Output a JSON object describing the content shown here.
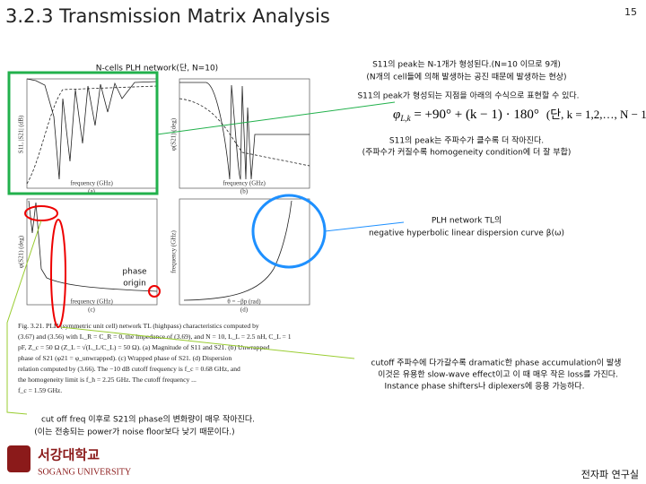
{
  "header": {
    "title": "3.2.3 Transmission Matrix Analysis",
    "page_number": "15"
  },
  "figure": {
    "panels": [
      {
        "tag": "(a)",
        "xlabel": "frequency (GHz)",
        "ylabel": "S11, |S21| (dB)"
      },
      {
        "tag": "(b)",
        "xlabel": "frequency (GHz)",
        "ylabel": "φ(S21) (deg)"
      },
      {
        "tag": "(c)",
        "xlabel": "frequency (GHz)",
        "ylabel": "φ(S21) (deg)"
      },
      {
        "tag": "(d)",
        "xlabel": "θ = −βp (rad)",
        "ylabel": "frequency (GHz)"
      }
    ],
    "caption": [
      "Fig. 3.21. PLH (symmetric unit cell) network TL (highpass) characteristics computed by",
      "(3.67) and (3.56) with L_R = C_R = 0, the impedance of (3.69), and N = 10, L_L = 2.5 nH, C_L = 1",
      "pF, Z_c = 50 Ω (Z_L = √(L_L/C_L) = 50 Ω). (a) Magnitude of S11 and S21. (b) Unwrapped",
      "phase of S21 (φ21 = φ_unwrapped). (c) Wrapped phase of S21. (d) Dispersion",
      "relation computed by (3.66). The −10 dB cutoff frequency is f_c = 0.68 GHz, and",
      "the homogeneity limit is f_h = 2.25 GHz. The cutoff frequency ...",
      "f_c = 1.59 GHz."
    ]
  },
  "notes": {
    "n_cells": "N-cells PLH network(단, N=10)",
    "peaks": [
      "S11의 peak는 N-1개가 형성된다.(N=10 이므로 9개)",
      "(N개의 cell들에 의해 발생하는 공진 때문에 발생하는 현상)"
    ],
    "peak_position": "S11의 peak가 형성되는 지점을 아래의 수식으로 표현할 수 있다.",
    "peak_size": [
      "S11의 peak는 주파수가 클수록 더 작아진다.",
      "(주파수가 커질수록 homogeneity condition에 더 잘 부합)"
    ],
    "dispersion": [
      "PLH network TL의",
      "negative hyperbolic linear dispersion curve β(ω)"
    ],
    "phase_origin": [
      "phase",
      "origin"
    ],
    "cutoff": [
      "cutoff 주파수에 다가갈수록 dramatic한 phase accumulation이 발생",
      "이것은 유용한 slow-wave effect이고 이 때 매우 작은 loss를 가진다.",
      "Instance phase shifters나 diplexers에 응용 가능하다."
    ],
    "after_cutoff": [
      "cut off freq 이후로 S21의 phase의 변화량이 매우 작아진다.",
      "(이는 전송되는 power가 noise floor보다 낮기 때문이다.)"
    ]
  },
  "formula": {
    "symbol": "φ",
    "subscript": "L,k",
    "expression": " = +90° + (k − 1) · 180°",
    "condition": "(단, k = 1,2,…, N − 1)"
  },
  "footer": {
    "logo_korean": "서강대학교",
    "logo_english": "SOGANG UNIVERSITY",
    "lab": "전자파 연구실"
  }
}
